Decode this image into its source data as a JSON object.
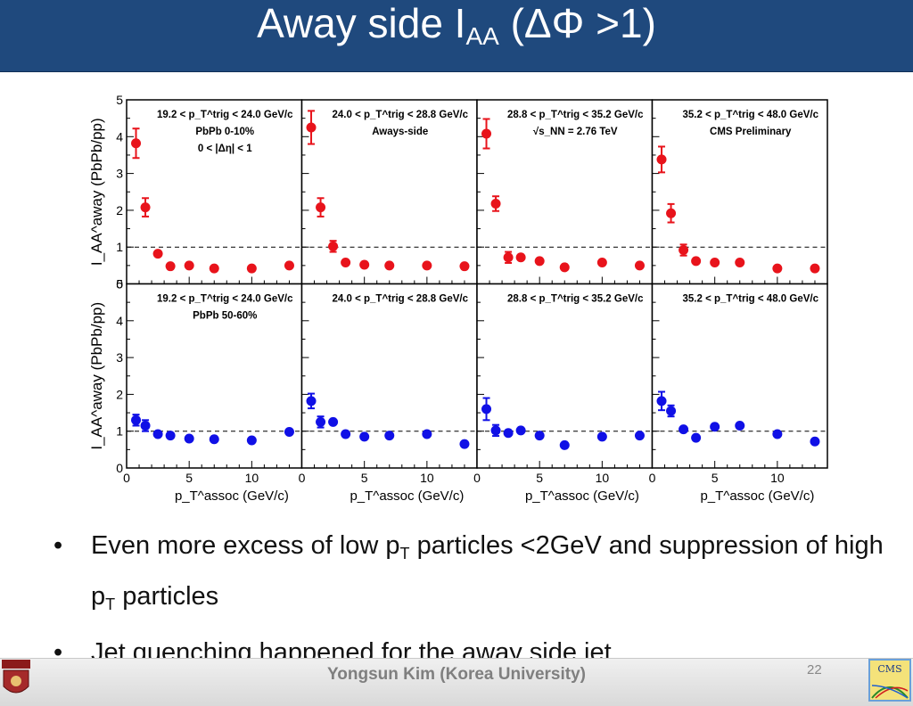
{
  "slide": {
    "title_main": "Away side I",
    "title_sub": "AA",
    "title_tail": " (ΔΦ >1)",
    "bullets": [
      {
        "pre": "Even more excess of low p",
        "sub": "T",
        "post": " particles <2GeV and suppression of high p",
        "sub2": "T",
        "post2": " particles"
      },
      {
        "pre": "Jet quenching happened for the away side jet"
      }
    ],
    "footer_author": "Yongsun Kim (Korea University)",
    "page_number": "22",
    "logos": [
      "korea-university-crest-icon",
      "cms-logo-icon"
    ]
  },
  "chart_data": {
    "type": "scatter",
    "layout": "grid 2 rows x 4 columns, shared axes",
    "x_ticks": [
      "0",
      "5",
      "10"
    ],
    "y_ticks": [
      "0",
      "1",
      "2",
      "3",
      "4",
      "5"
    ],
    "xlim": [
      0,
      14
    ],
    "ylim": [
      0,
      5
    ],
    "xlabel": "p_T^assoc (GeV/c)",
    "ylabel": "I_AA^away (PbPb/pp)",
    "reference_line": {
      "y": 1,
      "style": "dashed"
    },
    "x": [
      0.75,
      1.5,
      2.5,
      3.5,
      5,
      7,
      10,
      13
    ],
    "rows": [
      {
        "color": "#e8131b",
        "panels": [
          {
            "labels": [
              "19.2 < p_T^trig < 24.0 GeV/c",
              "PbPb 0-10%",
              "0 < |Δη| < 1"
            ],
            "y": [
              3.82,
              2.08,
              0.82,
              0.48,
              0.5,
              0.42,
              0.42,
              0.5
            ],
            "err": [
              0.4,
              0.25,
              0.1,
              0.05,
              0.05,
              0.05,
              0.05,
              0.06
            ]
          },
          {
            "labels": [
              "24.0 < p_T^trig < 28.8 GeV/c",
              "Aways-side"
            ],
            "y": [
              4.25,
              2.08,
              1.02,
              0.58,
              0.52,
              0.5,
              0.5,
              0.48
            ],
            "err": [
              0.45,
              0.25,
              0.15,
              0.06,
              0.05,
              0.05,
              0.05,
              0.05
            ]
          },
          {
            "labels": [
              "28.8 < p_T^trig < 35.2 GeV/c",
              "√s_NN = 2.76 TeV"
            ],
            "y": [
              4.08,
              2.18,
              0.72,
              0.72,
              0.62,
              0.45,
              0.58,
              0.5
            ],
            "err": [
              0.4,
              0.2,
              0.15,
              0.06,
              0.05,
              0.05,
              0.05,
              0.05
            ]
          },
          {
            "labels": [
              "35.2 < p_T^trig < 48.0 GeV/c",
              "CMS Preliminary"
            ],
            "y": [
              3.38,
              1.92,
              0.92,
              0.62,
              0.58,
              0.58,
              0.42,
              0.42
            ],
            "err": [
              0.35,
              0.25,
              0.15,
              0.06,
              0.05,
              0.05,
              0.05,
              0.05
            ]
          }
        ]
      },
      {
        "color": "#1010e6",
        "panels": [
          {
            "labels": [
              "19.2 < p_T^trig < 24.0 GeV/c",
              "PbPb 50-60%"
            ],
            "y": [
              1.3,
              1.15,
              0.92,
              0.88,
              0.8,
              0.78,
              0.75,
              0.98
            ],
            "err": [
              0.15,
              0.15,
              0.08,
              0.06,
              0.05,
              0.05,
              0.05,
              0.06
            ]
          },
          {
            "labels": [
              "24.0 < p_T^trig < 28.8 GeV/c"
            ],
            "y": [
              1.82,
              1.25,
              1.25,
              0.92,
              0.85,
              0.88,
              0.92,
              0.65
            ],
            "err": [
              0.2,
              0.15,
              0.12,
              0.06,
              0.05,
              0.05,
              0.05,
              0.05
            ]
          },
          {
            "labels": [
              "28.8 < p_T^trig < 35.2 GeV/c"
            ],
            "y": [
              1.6,
              1.02,
              0.95,
              1.02,
              0.88,
              0.62,
              0.85,
              0.88
            ],
            "err": [
              0.3,
              0.15,
              0.12,
              0.08,
              0.05,
              0.05,
              0.05,
              0.05
            ]
          },
          {
            "labels": [
              "35.2 < p_T^trig < 48.0 GeV/c"
            ],
            "y": [
              1.82,
              1.55,
              1.05,
              0.82,
              1.12,
              1.15,
              0.92,
              0.72
            ],
            "err": [
              0.25,
              0.15,
              0.1,
              0.06,
              0.08,
              0.08,
              0.05,
              0.05
            ]
          }
        ]
      }
    ]
  }
}
